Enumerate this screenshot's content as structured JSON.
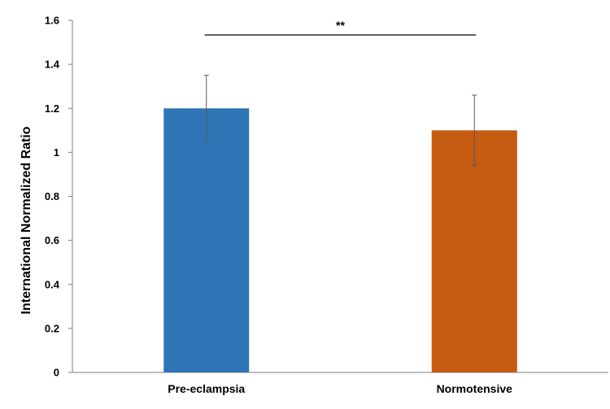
{
  "chart_data": {
    "type": "bar",
    "categories": [
      "Pre-eclampsia",
      "Normotensive"
    ],
    "values": [
      1.2,
      1.1
    ],
    "error": [
      0.15,
      0.16
    ],
    "colors": [
      "#2e75b6",
      "#c55a11"
    ],
    "ylabel": "International Normalized Ratio",
    "ylim": [
      0,
      1.6
    ],
    "yticks": [
      "0",
      "0.2",
      "0.4",
      "0.6",
      "0.8",
      "1",
      "1.2",
      "1.4",
      "1.6"
    ],
    "significance": {
      "label": "**",
      "between": [
        "Pre-eclampsia",
        "Normotensive"
      ]
    },
    "grid": false,
    "legend": "none"
  }
}
